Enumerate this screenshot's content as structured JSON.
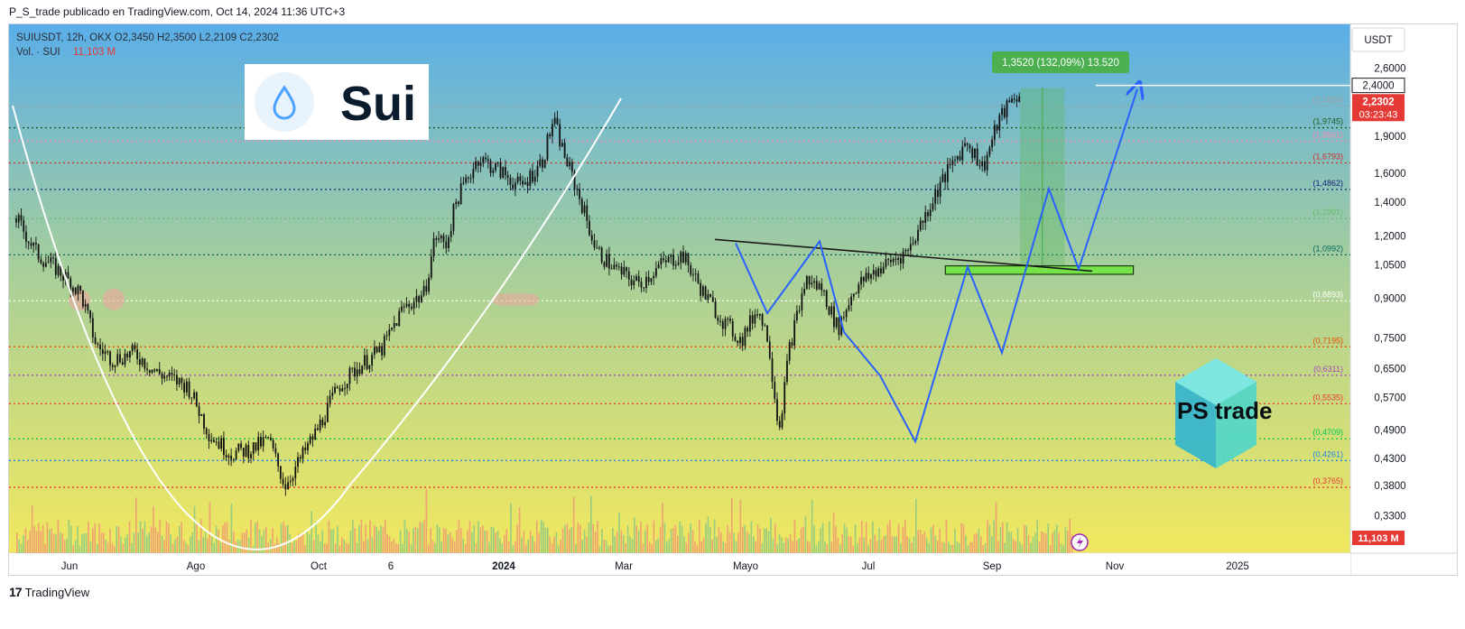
{
  "header": {
    "published_line": "P_S_trade publicado en TradingView.com, Oct 14, 2024 11:36 UTC+3"
  },
  "legend": {
    "symbol_line": "SUIUSDT, 12h, OKX  O2,3450  H2,3500  L2,2109  C2,2302",
    "volume_label": "Vol. · SUI",
    "volume_value": "11,103 M"
  },
  "currency_button": "USDT",
  "logos": {
    "sui_text": "Sui",
    "ps_text": "PS trade"
  },
  "footer": {
    "brand": "TradingView",
    "mark": "17"
  },
  "colors": {
    "bg_top": "#5aaee8",
    "bg_mid": "#a8cf9a",
    "bg_bottom": "#f7ea5a",
    "pattern_line": "#2962ff",
    "cup_line": "#ffffff",
    "zone_green": "#76e34a",
    "price_label": "#e53935",
    "measure_green": "#4caf50"
  },
  "chart_data": {
    "type": "candlestick",
    "title": "SUIUSDT, 12h, OKX",
    "scale": "log",
    "ylim": [
      0.285,
      3.05
    ],
    "x_ticks": [
      "Jun",
      "Ago",
      "Oct",
      "6",
      "2024",
      "Mar",
      "Mayo",
      "Jul",
      "Sep",
      "Nov",
      "2025"
    ],
    "y_ticks": [
      "2,6000",
      "1,9000",
      "1,6000",
      "1,4000",
      "1,2000",
      "1,0500",
      "0,9000",
      "0,7500",
      "0,6500",
      "0,5700",
      "0,4900",
      "0,4300",
      "0,3800",
      "0,3300"
    ],
    "current_price": {
      "label": "2,2302",
      "countdown": "03:23:43",
      "value": 2.2302
    },
    "target_price": {
      "label": "2,4000",
      "value": 2.4
    },
    "volume_label": "11,103 M",
    "fib_levels": [
      {
        "label": "(2,1826)",
        "value": 2.1826,
        "color": "#9e9e9e",
        "dash": "1,2"
      },
      {
        "label": "(1,9745)",
        "value": 1.9745,
        "color": "#1b5e20",
        "dash": "2,3"
      },
      {
        "label": "(1,8561)",
        "value": 1.8561,
        "color": "#f48fb1",
        "dash": "2,3"
      },
      {
        "label": "(1,6793)",
        "value": 1.6793,
        "color": "#d32f2f",
        "dash": "2,3"
      },
      {
        "label": "(1,4862)",
        "value": 1.4862,
        "color": "#1a237e",
        "dash": "2,3"
      },
      {
        "label": "(1,2991)",
        "value": 1.2991,
        "color": "#66bb6a",
        "dash": "2,3"
      },
      {
        "label": "(1,0992)",
        "value": 1.0992,
        "color": "#00695c",
        "dash": "2,3"
      },
      {
        "label": "(0,8893)",
        "value": 0.8893,
        "color": "#ffffff",
        "dash": "2,3"
      },
      {
        "label": "(0,7195)",
        "value": 0.7195,
        "color": "#e65100",
        "dash": "2,3"
      },
      {
        "label": "(0,6311)",
        "value": 0.6311,
        "color": "#ab47bc",
        "dash": "2,3"
      },
      {
        "label": "(0,5535)",
        "value": 0.5535,
        "color": "#e53935",
        "dash": "2,3"
      },
      {
        "label": "(0,4709)",
        "value": 0.4709,
        "color": "#00c853",
        "dash": "2,3"
      },
      {
        "label": "(0,4261)",
        "value": 0.4261,
        "color": "#1e88e5",
        "dash": "2,3"
      },
      {
        "label": "(0,3765)",
        "value": 0.3765,
        "color": "#e53935",
        "dash": "2,3"
      }
    ],
    "price_path": [
      {
        "x": 0.0,
        "y": 1.3
      },
      {
        "x": 0.02,
        "y": 1.1
      },
      {
        "x": 0.04,
        "y": 1.02
      },
      {
        "x": 0.06,
        "y": 0.92
      },
      {
        "x": 0.075,
        "y": 0.72
      },
      {
        "x": 0.09,
        "y": 0.68
      },
      {
        "x": 0.11,
        "y": 0.7
      },
      {
        "x": 0.13,
        "y": 0.64
      },
      {
        "x": 0.16,
        "y": 0.6
      },
      {
        "x": 0.18,
        "y": 0.48
      },
      {
        "x": 0.2,
        "y": 0.44
      },
      {
        "x": 0.22,
        "y": 0.45
      },
      {
        "x": 0.235,
        "y": 0.47
      },
      {
        "x": 0.25,
        "y": 0.38
      },
      {
        "x": 0.265,
        "y": 0.43
      },
      {
        "x": 0.28,
        "y": 0.49
      },
      {
        "x": 0.3,
        "y": 0.6
      },
      {
        "x": 0.32,
        "y": 0.66
      },
      {
        "x": 0.34,
        "y": 0.71
      },
      {
        "x": 0.36,
        "y": 0.86
      },
      {
        "x": 0.38,
        "y": 0.92
      },
      {
        "x": 0.39,
        "y": 1.2
      },
      {
        "x": 0.4,
        "y": 1.15
      },
      {
        "x": 0.41,
        "y": 1.42
      },
      {
        "x": 0.43,
        "y": 1.72
      },
      {
        "x": 0.45,
        "y": 1.62
      },
      {
        "x": 0.47,
        "y": 1.5
      },
      {
        "x": 0.49,
        "y": 1.7
      },
      {
        "x": 0.5,
        "y": 2.05
      },
      {
        "x": 0.51,
        "y": 1.75
      },
      {
        "x": 0.525,
        "y": 1.42
      },
      {
        "x": 0.54,
        "y": 1.12
      },
      {
        "x": 0.56,
        "y": 1.02
      },
      {
        "x": 0.58,
        "y": 0.96
      },
      {
        "x": 0.6,
        "y": 1.05
      },
      {
        "x": 0.62,
        "y": 1.1
      },
      {
        "x": 0.64,
        "y": 0.92
      },
      {
        "x": 0.66,
        "y": 0.8
      },
      {
        "x": 0.675,
        "y": 0.74
      },
      {
        "x": 0.69,
        "y": 0.86
      },
      {
        "x": 0.7,
        "y": 0.75
      },
      {
        "x": 0.71,
        "y": 0.49
      },
      {
        "x": 0.72,
        "y": 0.72
      },
      {
        "x": 0.735,
        "y": 0.98
      },
      {
        "x": 0.75,
        "y": 0.94
      },
      {
        "x": 0.765,
        "y": 0.78
      },
      {
        "x": 0.78,
        "y": 0.94
      },
      {
        "x": 0.8,
        "y": 1.02
      },
      {
        "x": 0.83,
        "y": 1.12
      },
      {
        "x": 0.86,
        "y": 1.52
      },
      {
        "x": 0.885,
        "y": 1.86
      },
      {
        "x": 0.9,
        "y": 1.64
      },
      {
        "x": 0.915,
        "y": 2.05
      },
      {
        "x": 0.93,
        "y": 2.3
      },
      {
        "x": 0.935,
        "y": 2.23
      }
    ],
    "measure": {
      "label": "1,3520 (132,09%) 13.520",
      "from": 1.02,
      "to": 2.372
    },
    "breakout_zone": {
      "low": 1.005,
      "high": 1.045
    }
  }
}
